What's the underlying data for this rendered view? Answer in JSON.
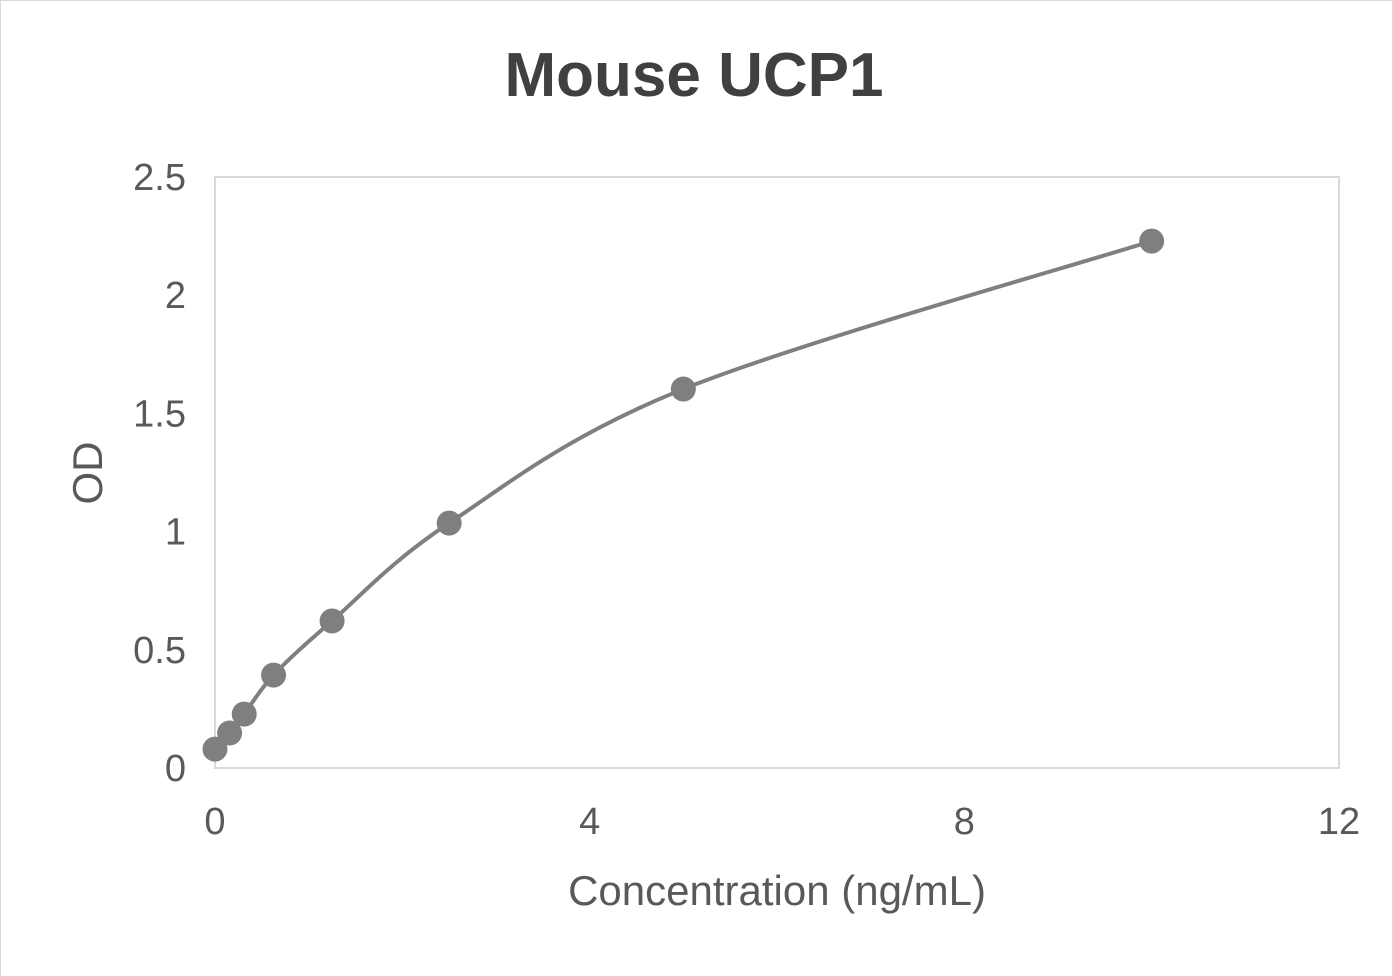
{
  "chart_data": {
    "type": "scatter",
    "title": "Mouse UCP1",
    "xlabel": "Concentration (ng/mL)",
    "ylabel": "OD",
    "xlim": [
      0,
      12
    ],
    "ylim": [
      0,
      2.5
    ],
    "x_ticks": [
      "0",
      "4",
      "8",
      "12"
    ],
    "y_ticks": [
      "0",
      "0.5",
      "1",
      "1.5",
      "2",
      "2.5"
    ],
    "grid": false,
    "smoothed_line": true,
    "series": [
      {
        "x": [
          0,
          0.156,
          0.312,
          0.625,
          1.25,
          2.5,
          5,
          10
        ],
        "y": [
          0.08,
          0.148,
          0.228,
          0.393,
          0.622,
          1.036,
          1.603,
          2.229
        ],
        "color": "#7f7f7f"
      }
    ]
  }
}
